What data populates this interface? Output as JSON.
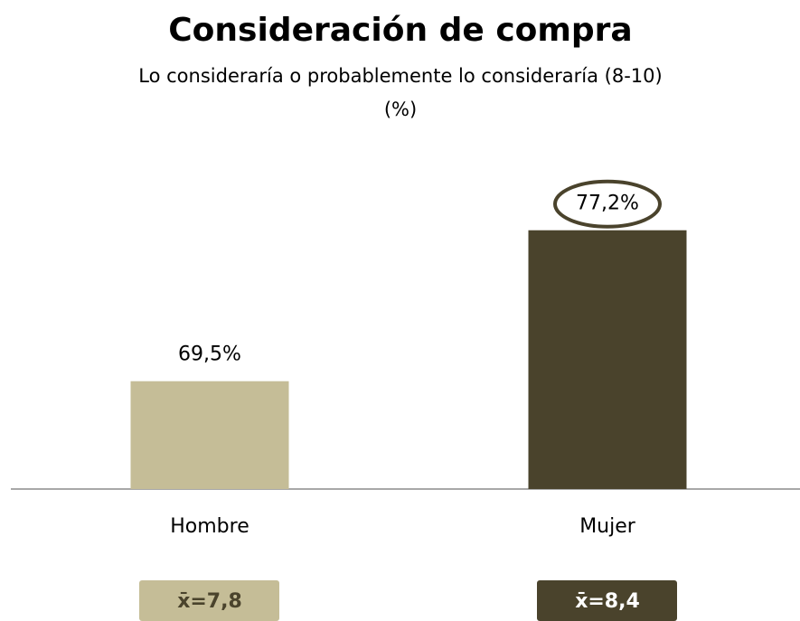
{
  "chart_data": {
    "type": "bar",
    "title": "Consideración de compra",
    "subtitle": "Lo consideraría o probablemente lo consideraría (8-10)",
    "unit_label": "(%)",
    "categories": [
      "Hombre",
      "Mujer"
    ],
    "values": [
      69.5,
      77.2
    ],
    "value_labels": [
      "69,5%",
      "77,2%"
    ],
    "colors": [
      "#c5bd97",
      "#4a432c"
    ],
    "mean_labels": [
      "x̄=7,8",
      "x̄=8,4"
    ],
    "highlighted": "Mujer",
    "ylim": [
      64,
      80
    ]
  }
}
